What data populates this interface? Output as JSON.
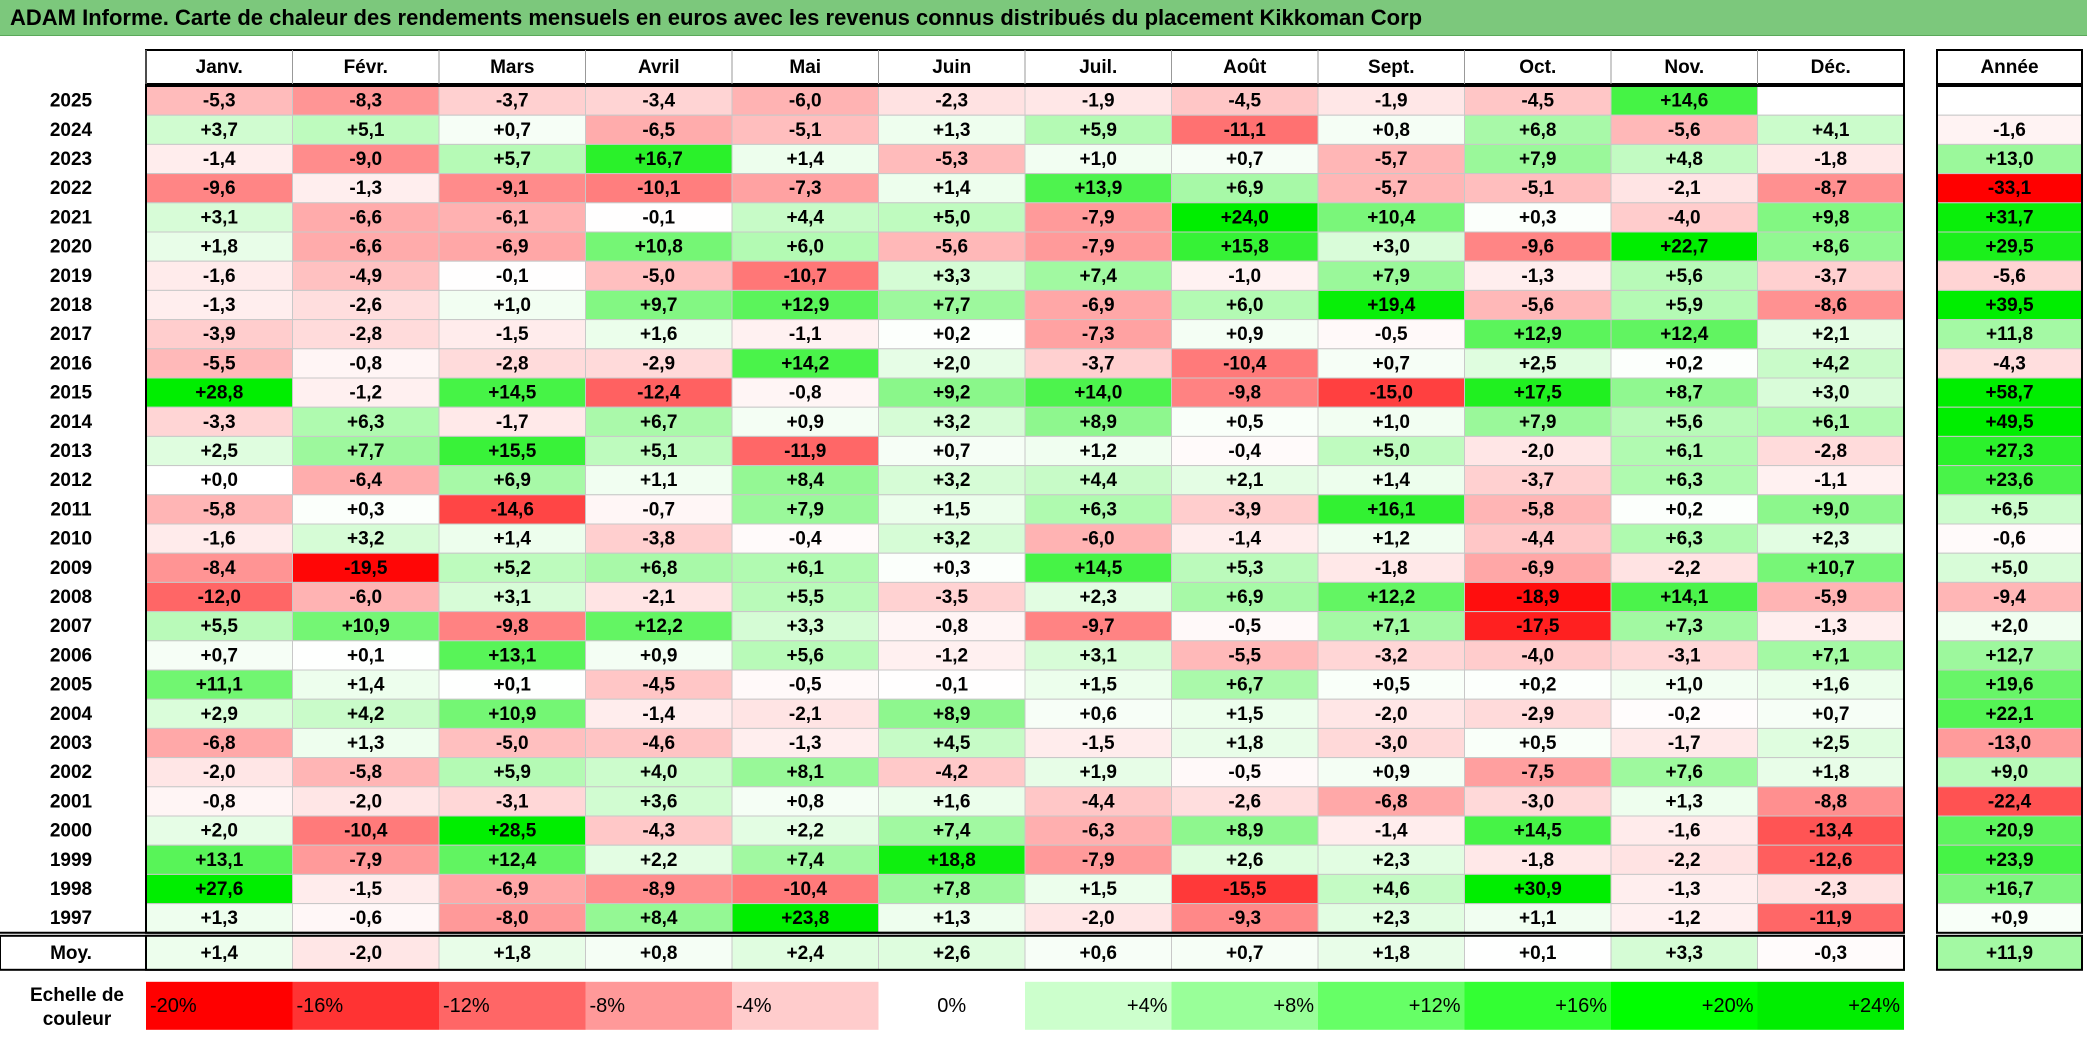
{
  "title": "ADAM Informe. Carte de chaleur des rendements mensuels en euros avec les revenus connus distribués du placement Kikkoman Corp",
  "chart_data": {
    "type": "heatmap",
    "months": [
      "Janv.",
      "Févr.",
      "Mars",
      "Avril",
      "Mai",
      "Juin",
      "Juil.",
      "Août",
      "Sept.",
      "Oct.",
      "Nov.",
      "Déc."
    ],
    "annual_header": "Année",
    "rows": [
      {
        "year": "2025",
        "values": [
          "-5,3",
          "-8,3",
          "-3,7",
          "-3,4",
          "-6,0",
          "-2,3",
          "-1,9",
          "-4,5",
          "-1,9",
          "-4,5",
          "+14,6",
          ""
        ],
        "annual": ""
      },
      {
        "year": "2024",
        "values": [
          "+3,7",
          "+5,1",
          "+0,7",
          "-6,5",
          "-5,1",
          "+1,3",
          "+5,9",
          "-11,1",
          "+0,8",
          "+6,8",
          "-5,6",
          "+4,1"
        ],
        "annual": "-1,6"
      },
      {
        "year": "2023",
        "values": [
          "-1,4",
          "-9,0",
          "+5,7",
          "+16,7",
          "+1,4",
          "-5,3",
          "+1,0",
          "+0,7",
          "-5,7",
          "+7,9",
          "+4,8",
          "-1,8"
        ],
        "annual": "+13,0"
      },
      {
        "year": "2022",
        "values": [
          "-9,6",
          "-1,3",
          "-9,1",
          "-10,1",
          "-7,3",
          "+1,4",
          "+13,9",
          "+6,9",
          "-5,7",
          "-5,1",
          "-2,1",
          "-8,7"
        ],
        "annual": "-33,1"
      },
      {
        "year": "2021",
        "values": [
          "+3,1",
          "-6,6",
          "-6,1",
          "-0,1",
          "+4,4",
          "+5,0",
          "-7,9",
          "+24,0",
          "+10,4",
          "+0,3",
          "-4,0",
          "+9,8"
        ],
        "annual": "+31,7"
      },
      {
        "year": "2020",
        "values": [
          "+1,8",
          "-6,6",
          "-6,9",
          "+10,8",
          "+6,0",
          "-5,6",
          "-7,9",
          "+15,8",
          "+3,0",
          "-9,6",
          "+22,7",
          "+8,6"
        ],
        "annual": "+29,5"
      },
      {
        "year": "2019",
        "values": [
          "-1,6",
          "-4,9",
          "-0,1",
          "-5,0",
          "-10,7",
          "+3,3",
          "+7,4",
          "-1,0",
          "+7,9",
          "-1,3",
          "+5,6",
          "-3,7"
        ],
        "annual": "-5,6"
      },
      {
        "year": "2018",
        "values": [
          "-1,3",
          "-2,6",
          "+1,0",
          "+9,7",
          "+12,9",
          "+7,7",
          "-6,9",
          "+6,0",
          "+19,4",
          "-5,6",
          "+5,9",
          "-8,6"
        ],
        "annual": "+39,5"
      },
      {
        "year": "2017",
        "values": [
          "-3,9",
          "-2,8",
          "-1,5",
          "+1,6",
          "-1,1",
          "+0,2",
          "-7,3",
          "+0,9",
          "-0,5",
          "+12,9",
          "+12,4",
          "+2,1"
        ],
        "annual": "+11,8"
      },
      {
        "year": "2016",
        "values": [
          "-5,5",
          "-0,8",
          "-2,8",
          "-2,9",
          "+14,2",
          "+2,0",
          "-3,7",
          "-10,4",
          "+0,7",
          "+2,5",
          "+0,2",
          "+4,2"
        ],
        "annual": "-4,3"
      },
      {
        "year": "2015",
        "values": [
          "+28,8",
          "-1,2",
          "+14,5",
          "-12,4",
          "-0,8",
          "+9,2",
          "+14,0",
          "-9,8",
          "-15,0",
          "+17,5",
          "+8,7",
          "+3,0"
        ],
        "annual": "+58,7"
      },
      {
        "year": "2014",
        "values": [
          "-3,3",
          "+6,3",
          "-1,7",
          "+6,7",
          "+0,9",
          "+3,2",
          "+8,9",
          "+0,5",
          "+1,0",
          "+7,9",
          "+5,6",
          "+6,1"
        ],
        "annual": "+49,5"
      },
      {
        "year": "2013",
        "values": [
          "+2,5",
          "+7,7",
          "+15,5",
          "+5,1",
          "-11,9",
          "+0,7",
          "+1,2",
          "-0,4",
          "+5,0",
          "-2,0",
          "+6,1",
          "-2,8"
        ],
        "annual": "+27,3"
      },
      {
        "year": "2012",
        "values": [
          "+0,0",
          "-6,4",
          "+6,9",
          "+1,1",
          "+8,4",
          "+3,2",
          "+4,4",
          "+2,1",
          "+1,4",
          "-3,7",
          "+6,3",
          "-1,1"
        ],
        "annual": "+23,6"
      },
      {
        "year": "2011",
        "values": [
          "-5,8",
          "+0,3",
          "-14,6",
          "-0,7",
          "+7,9",
          "+1,5",
          "+6,3",
          "-3,9",
          "+16,1",
          "-5,8",
          "+0,2",
          "+9,0"
        ],
        "annual": "+6,5"
      },
      {
        "year": "2010",
        "values": [
          "-1,6",
          "+3,2",
          "+1,4",
          "-3,8",
          "-0,4",
          "+3,2",
          "-6,0",
          "-1,4",
          "+1,2",
          "-4,4",
          "+6,3",
          "+2,3"
        ],
        "annual": "-0,6"
      },
      {
        "year": "2009",
        "values": [
          "-8,4",
          "-19,5",
          "+5,2",
          "+6,8",
          "+6,1",
          "+0,3",
          "+14,5",
          "+5,3",
          "-1,8",
          "-6,9",
          "-2,2",
          "+10,7"
        ],
        "annual": "+5,0"
      },
      {
        "year": "2008",
        "values": [
          "-12,0",
          "-6,0",
          "+3,1",
          "-2,1",
          "+5,5",
          "-3,5",
          "+2,3",
          "+6,9",
          "+12,2",
          "-18,9",
          "+14,1",
          "-5,9"
        ],
        "annual": "-9,4"
      },
      {
        "year": "2007",
        "values": [
          "+5,5",
          "+10,9",
          "-9,8",
          "+12,2",
          "+3,3",
          "-0,8",
          "-9,7",
          "-0,5",
          "+7,1",
          "-17,5",
          "+7,3",
          "-1,3"
        ],
        "annual": "+2,0"
      },
      {
        "year": "2006",
        "values": [
          "+0,7",
          "+0,1",
          "+13,1",
          "+0,9",
          "+5,6",
          "-1,2",
          "+3,1",
          "-5,5",
          "-3,2",
          "-4,0",
          "-3,1",
          "+7,1"
        ],
        "annual": "+12,7"
      },
      {
        "year": "2005",
        "values": [
          "+11,1",
          "+1,4",
          "+0,1",
          "-4,5",
          "-0,5",
          "-0,1",
          "+1,5",
          "+6,7",
          "+0,5",
          "+0,2",
          "+1,0",
          "+1,6"
        ],
        "annual": "+19,6"
      },
      {
        "year": "2004",
        "values": [
          "+2,9",
          "+4,2",
          "+10,9",
          "-1,4",
          "-2,1",
          "+8,9",
          "+0,6",
          "+1,5",
          "-2,0",
          "-2,9",
          "-0,2",
          "+0,7"
        ],
        "annual": "+22,1"
      },
      {
        "year": "2003",
        "values": [
          "-6,8",
          "+1,3",
          "-5,0",
          "-4,6",
          "-1,3",
          "+4,5",
          "-1,5",
          "+1,8",
          "-3,0",
          "+0,5",
          "-1,7",
          "+2,5"
        ],
        "annual": "-13,0"
      },
      {
        "year": "2002",
        "values": [
          "-2,0",
          "-5,8",
          "+5,9",
          "+4,0",
          "+8,1",
          "-4,2",
          "+1,9",
          "-0,5",
          "+0,9",
          "-7,5",
          "+7,6",
          "+1,8"
        ],
        "annual": "+9,0"
      },
      {
        "year": "2001",
        "values": [
          "-0,8",
          "-2,0",
          "-3,1",
          "+3,6",
          "+0,8",
          "+1,6",
          "-4,4",
          "-2,6",
          "-6,8",
          "-3,0",
          "+1,3",
          "-8,8"
        ],
        "annual": "-22,4"
      },
      {
        "year": "2000",
        "values": [
          "+2,0",
          "-10,4",
          "+28,5",
          "-4,3",
          "+2,2",
          "+7,4",
          "-6,3",
          "+8,9",
          "-1,4",
          "+14,5",
          "-1,6",
          "-13,4"
        ],
        "annual": "+20,9"
      },
      {
        "year": "1999",
        "values": [
          "+13,1",
          "-7,9",
          "+12,4",
          "+2,2",
          "+7,4",
          "+18,8",
          "-7,9",
          "+2,6",
          "+2,3",
          "-1,8",
          "-2,2",
          "-12,6"
        ],
        "annual": "+23,9"
      },
      {
        "year": "1998",
        "values": [
          "+27,6",
          "-1,5",
          "-6,9",
          "-8,9",
          "-10,4",
          "+7,8",
          "+1,5",
          "-15,5",
          "+4,6",
          "+30,9",
          "-1,3",
          "-2,3"
        ],
        "annual": "+16,7"
      },
      {
        "year": "1997",
        "values": [
          "+1,3",
          "-0,6",
          "-8,0",
          "+8,4",
          "+23,8",
          "+1,3",
          "-2,0",
          "-9,3",
          "+2,3",
          "+1,1",
          "-1,2",
          "-11,9"
        ],
        "annual": "+0,9"
      }
    ],
    "average": {
      "label": "Moy.",
      "values": [
        "+1,4",
        "-2,0",
        "+1,8",
        "+0,8",
        "+2,4",
        "+2,6",
        "+0,6",
        "+0,7",
        "+1,8",
        "+0,1",
        "+3,3",
        "-0,3"
      ],
      "annual": "+11,9"
    },
    "scale": {
      "label_line1": "Echelle de",
      "label_line2": "couleur",
      "steps": [
        {
          "label": "-20%",
          "color": "#ff0000"
        },
        {
          "label": "-16%",
          "color": "#ff3333"
        },
        {
          "label": "-12%",
          "color": "#ff6666"
        },
        {
          "label": "-8%",
          "color": "#ff9999"
        },
        {
          "label": "-4%",
          "color": "#ffcccc"
        },
        {
          "label": "0%",
          "color": "#ffffff"
        },
        {
          "label": "+4%",
          "color": "#ccffcc"
        },
        {
          "label": "+8%",
          "color": "#99ff99"
        },
        {
          "label": "+12%",
          "color": "#66ff66"
        },
        {
          "label": "+16%",
          "color": "#33ff33"
        },
        {
          "label": "+20%",
          "color": "#00ff00"
        },
        {
          "label": "+24%",
          "color": "#00ee00"
        }
      ]
    },
    "colors": {
      "negative_max": "#ff0000",
      "neutral": "#ffffff",
      "positive_max": "#00ff00",
      "title_bar": "#7cc87c"
    }
  }
}
